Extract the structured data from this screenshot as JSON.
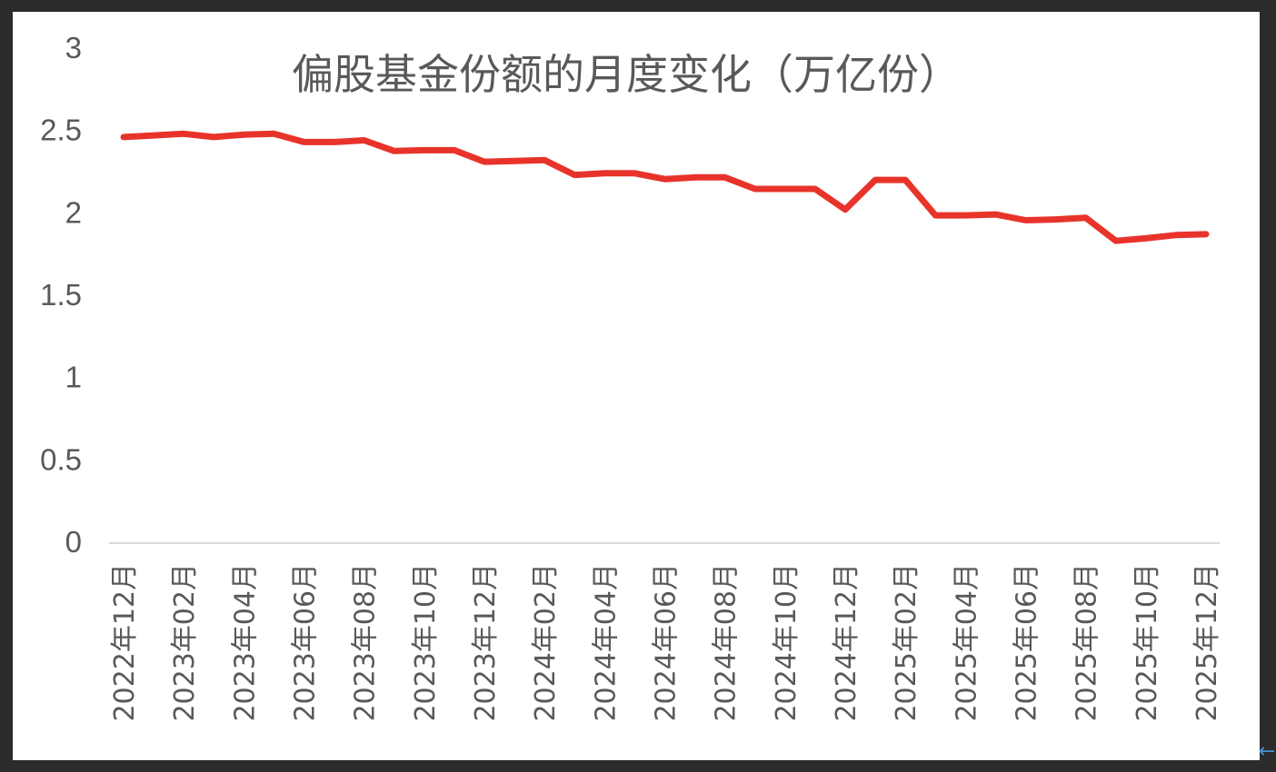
{
  "chart_data": {
    "type": "line",
    "title": "偏股基金份额的月度变化（万亿份）",
    "xlabel": "",
    "ylabel": "",
    "ylim": [
      0,
      3
    ],
    "yticks": [
      "0",
      "0.5",
      "1",
      "1.5",
      "2",
      "2.5",
      "3"
    ],
    "grid": false,
    "legend": "none",
    "x": [
      "2022年12月",
      "2023年01月",
      "2023年02月",
      "2023年03月",
      "2023年04月",
      "2023年05月",
      "2023年06月",
      "2023年07月",
      "2023年08月",
      "2023年09月",
      "2023年10月",
      "2023年11月",
      "2023年12月",
      "2024年01月",
      "2024年02月",
      "2024年03月",
      "2024年04月",
      "2024年05月",
      "2024年06月",
      "2024年07月",
      "2024年08月",
      "2024年09月",
      "2024年10月",
      "2024年11月",
      "2024年12月",
      "2025年01月",
      "2025年02月",
      "2025年03月",
      "2025年04月",
      "2025年05月",
      "2025年06月",
      "2025年07月",
      "2025年08月",
      "2025年09月",
      "2025年10月",
      "2025年11月",
      "2025年12月"
    ],
    "xticks_shown": [
      "2022年12月",
      "2023年02月",
      "2023年04月",
      "2023年06月",
      "2023年08月",
      "2023年10月",
      "2023年12月",
      "2024年02月",
      "2024年04月",
      "2024年06月",
      "2024年08月",
      "2024年10月",
      "2024年12月",
      "2025年02月",
      "2025年04月",
      "2025年06月",
      "2025年08月",
      "2025年10月",
      "2025年12月"
    ],
    "series": [
      {
        "color": "#e8332a",
        "values": [
          2.46,
          2.47,
          2.48,
          2.46,
          2.475,
          2.48,
          2.43,
          2.43,
          2.44,
          2.375,
          2.38,
          2.38,
          2.31,
          2.315,
          2.32,
          2.23,
          2.24,
          2.24,
          2.205,
          2.215,
          2.215,
          2.145,
          2.145,
          2.145,
          2.02,
          2.2,
          2.2,
          1.985,
          1.985,
          1.99,
          1.955,
          1.96,
          1.97,
          1.83,
          1.845,
          1.865,
          1.87
        ]
      }
    ]
  },
  "ui": {
    "nav_arrow": "←"
  }
}
